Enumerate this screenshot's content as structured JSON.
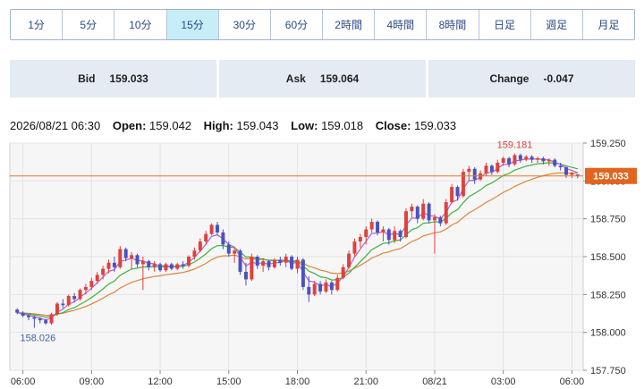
{
  "timeframes": {
    "items": [
      "1分",
      "5分",
      "10分",
      "15分",
      "30分",
      "60分",
      "2時間",
      "4時間",
      "8時間",
      "日足",
      "週足",
      "月足"
    ],
    "active": "15分"
  },
  "quote": {
    "bid_label": "Bid",
    "bid": "159.033",
    "ask_label": "Ask",
    "ask": "159.064",
    "change_label": "Change",
    "change": "-0.047"
  },
  "ohlc": {
    "datetime": "2026/08/21 06:30",
    "open_label": "Open:",
    "open": "159.042",
    "high_label": "High:",
    "high": "159.043",
    "low_label": "Low:",
    "low": "159.018",
    "close_label": "Close:",
    "close": "159.033"
  },
  "colors": {
    "up": "#e0413a",
    "down": "#4a52c2",
    "ma_short": "#b45fd6",
    "ma_mid": "#3fb23f",
    "ma_long": "#e0843a",
    "price_line": "#e07a2a",
    "price_tag": "#e2651e"
  },
  "chart_data": {
    "type": "candlestick",
    "y_ticks": [
      "159.250",
      "159.000",
      "158.750",
      "158.500",
      "158.250",
      "158.000",
      "157.750"
    ],
    "ylim": [
      157.75,
      159.25
    ],
    "x_ticks": [
      {
        "i": 1,
        "label": "06:00"
      },
      {
        "i": 13,
        "label": "09:00"
      },
      {
        "i": 25,
        "label": "12:00"
      },
      {
        "i": 37,
        "label": "15:00"
      },
      {
        "i": 49,
        "label": "18:00"
      },
      {
        "i": 61,
        "label": "21:00"
      },
      {
        "i": 73,
        "label": "08/21"
      },
      {
        "i": 85,
        "label": "03:00"
      },
      {
        "i": 97,
        "label": "06:00"
      }
    ],
    "current_price": "159.033",
    "max_label": {
      "i": 87,
      "value": "159.181"
    },
    "min_label": {
      "i": 3,
      "value": "158.026"
    },
    "candles": [
      [
        158.15,
        158.16,
        158.12,
        158.13
      ],
      [
        158.13,
        158.14,
        158.1,
        158.11
      ],
      [
        158.11,
        158.12,
        158.08,
        158.1
      ],
      [
        158.1,
        158.11,
        158.03,
        158.09
      ],
      [
        158.09,
        158.1,
        158.06,
        158.08
      ],
      [
        158.08,
        158.09,
        158.05,
        158.06
      ],
      [
        158.06,
        158.13,
        158.05,
        158.12
      ],
      [
        158.12,
        158.2,
        158.11,
        158.19
      ],
      [
        158.19,
        158.22,
        158.16,
        158.18
      ],
      [
        158.18,
        158.25,
        158.17,
        158.24
      ],
      [
        158.24,
        158.26,
        158.2,
        158.22
      ],
      [
        158.22,
        158.29,
        158.21,
        158.28
      ],
      [
        158.28,
        158.32,
        158.25,
        158.3
      ],
      [
        158.3,
        158.36,
        158.28,
        158.34
      ],
      [
        158.34,
        158.4,
        158.32,
        158.38
      ],
      [
        158.38,
        158.44,
        158.35,
        158.42
      ],
      [
        158.42,
        158.48,
        158.39,
        158.46
      ],
      [
        158.46,
        158.5,
        158.4,
        158.43
      ],
      [
        158.43,
        158.57,
        158.42,
        158.55
      ],
      [
        158.55,
        158.56,
        158.47,
        158.49
      ],
      [
        158.49,
        158.53,
        158.42,
        158.51
      ],
      [
        158.51,
        158.52,
        158.43,
        158.45
      ],
      [
        158.45,
        158.5,
        158.28,
        158.47
      ],
      [
        158.47,
        158.48,
        158.41,
        158.43
      ],
      [
        158.43,
        158.47,
        158.4,
        158.45
      ],
      [
        158.45,
        158.46,
        158.4,
        158.41
      ],
      [
        158.41,
        158.46,
        158.4,
        158.45
      ],
      [
        158.45,
        158.46,
        158.41,
        158.42
      ],
      [
        158.42,
        158.46,
        158.41,
        158.45
      ],
      [
        158.45,
        158.47,
        158.42,
        158.44
      ],
      [
        158.44,
        158.51,
        158.43,
        158.5
      ],
      [
        158.5,
        158.56,
        158.48,
        158.54
      ],
      [
        158.54,
        158.62,
        158.53,
        158.6
      ],
      [
        158.6,
        158.67,
        158.58,
        158.65
      ],
      [
        158.65,
        158.72,
        158.64,
        158.71
      ],
      [
        158.71,
        158.73,
        158.64,
        158.66
      ],
      [
        158.66,
        158.68,
        158.55,
        158.58
      ],
      [
        158.58,
        158.6,
        158.5,
        158.52
      ],
      [
        158.52,
        158.56,
        158.46,
        158.54
      ],
      [
        158.54,
        158.55,
        158.38,
        158.4
      ],
      [
        158.4,
        158.46,
        158.31,
        158.35
      ],
      [
        158.35,
        158.52,
        158.34,
        158.5
      ],
      [
        158.5,
        158.51,
        158.42,
        158.44
      ],
      [
        158.44,
        158.49,
        158.4,
        158.47
      ],
      [
        158.47,
        158.48,
        158.41,
        158.43
      ],
      [
        158.43,
        158.49,
        158.42,
        158.48
      ],
      [
        158.48,
        158.5,
        158.44,
        158.46
      ],
      [
        158.46,
        158.52,
        158.43,
        158.5
      ],
      [
        158.5,
        158.51,
        158.41,
        158.42
      ],
      [
        158.42,
        158.5,
        158.39,
        158.48
      ],
      [
        158.48,
        158.49,
        158.28,
        158.3
      ],
      [
        158.3,
        158.37,
        158.2,
        158.25
      ],
      [
        158.25,
        158.34,
        158.24,
        158.32
      ],
      [
        158.32,
        158.34,
        158.25,
        158.27
      ],
      [
        158.27,
        158.35,
        158.26,
        158.33
      ],
      [
        158.33,
        158.34,
        158.25,
        158.28
      ],
      [
        158.28,
        158.38,
        158.27,
        158.36
      ],
      [
        158.36,
        158.45,
        158.35,
        158.43
      ],
      [
        158.43,
        158.54,
        158.42,
        158.52
      ],
      [
        158.52,
        158.62,
        158.5,
        158.6
      ],
      [
        158.6,
        158.65,
        158.56,
        158.63
      ],
      [
        158.63,
        158.7,
        158.58,
        158.68
      ],
      [
        158.68,
        158.75,
        158.66,
        158.73
      ],
      [
        158.73,
        158.74,
        158.64,
        158.66
      ],
      [
        158.66,
        158.7,
        158.6,
        158.68
      ],
      [
        158.68,
        158.69,
        158.58,
        158.61
      ],
      [
        158.61,
        158.7,
        158.59,
        158.67
      ],
      [
        158.67,
        158.68,
        158.6,
        158.63
      ],
      [
        158.63,
        158.82,
        158.62,
        158.8
      ],
      [
        158.8,
        158.85,
        158.76,
        158.83
      ],
      [
        158.83,
        158.84,
        158.72,
        158.75
      ],
      [
        158.75,
        158.88,
        158.74,
        158.85
      ],
      [
        158.85,
        158.86,
        158.72,
        158.74
      ],
      [
        158.74,
        158.78,
        158.52,
        158.76
      ],
      [
        158.76,
        158.77,
        158.7,
        158.72
      ],
      [
        158.72,
        158.88,
        158.71,
        158.86
      ],
      [
        158.86,
        158.98,
        158.85,
        158.96
      ],
      [
        158.96,
        158.97,
        158.87,
        158.9
      ],
      [
        158.9,
        159.08,
        158.89,
        159.06
      ],
      [
        159.06,
        159.1,
        159.0,
        159.08
      ],
      [
        159.08,
        159.09,
        158.98,
        159.01
      ],
      [
        159.01,
        159.07,
        159.0,
        159.05
      ],
      [
        159.05,
        159.12,
        159.03,
        159.1
      ],
      [
        159.1,
        159.11,
        159.04,
        159.06
      ],
      [
        159.06,
        159.14,
        159.05,
        159.12
      ],
      [
        159.12,
        159.16,
        159.1,
        159.15
      ],
      [
        159.15,
        159.16,
        159.09,
        159.11
      ],
      [
        159.11,
        159.181,
        159.1,
        159.17
      ],
      [
        159.17,
        159.18,
        159.12,
        159.14
      ],
      [
        159.14,
        159.17,
        159.13,
        159.16
      ],
      [
        159.16,
        159.17,
        159.12,
        159.14
      ],
      [
        159.14,
        159.16,
        159.12,
        159.15
      ],
      [
        159.15,
        159.16,
        159.11,
        159.13
      ],
      [
        159.13,
        159.15,
        159.1,
        159.14
      ],
      [
        159.14,
        159.15,
        159.09,
        159.1
      ],
      [
        159.1,
        159.12,
        159.07,
        159.09
      ],
      [
        159.09,
        159.1,
        159.02,
        159.04
      ],
      [
        159.04,
        159.06,
        159.02,
        159.05
      ],
      [
        159.042,
        159.043,
        159.018,
        159.033
      ]
    ]
  }
}
